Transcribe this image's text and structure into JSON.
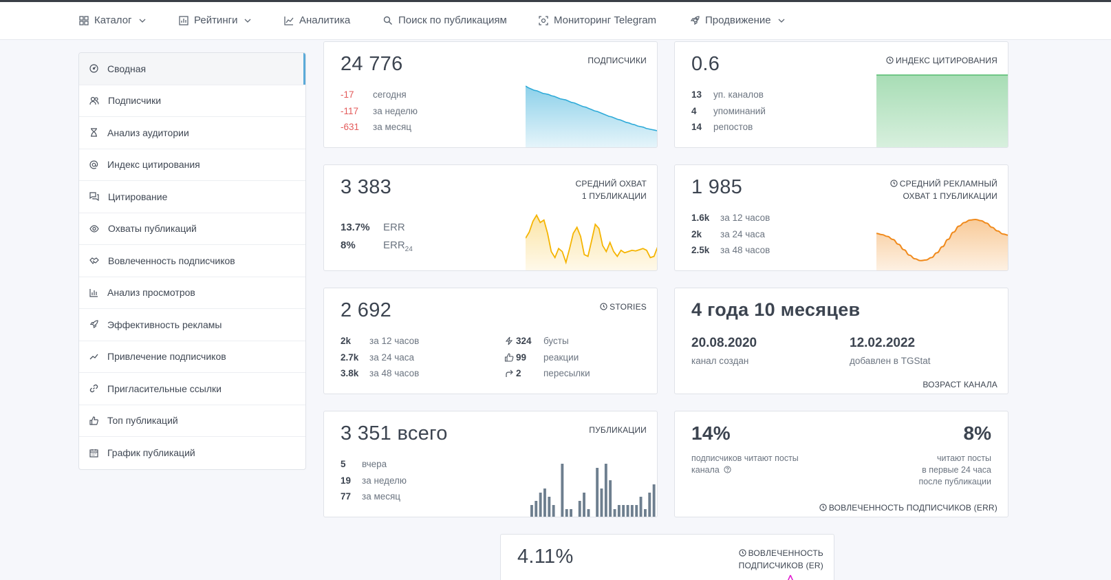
{
  "nav": {
    "items": [
      {
        "label": "Каталог"
      },
      {
        "label": "Рейтинги"
      },
      {
        "label": "Аналитика"
      },
      {
        "label": "Поиск по публикациям"
      },
      {
        "label": "Мониторинг Telegram"
      },
      {
        "label": "Продвижение"
      }
    ]
  },
  "sidebar": {
    "items": [
      {
        "label": "Сводная",
        "icon": "dashboard-icon"
      },
      {
        "label": "Подписчики",
        "icon": "users-icon"
      },
      {
        "label": "Анализ аудитории",
        "icon": "hourglass-icon"
      },
      {
        "label": "Индекс цитирования",
        "icon": "at-icon"
      },
      {
        "label": "Цитирование",
        "icon": "quote-icon"
      },
      {
        "label": "Охваты публикаций",
        "icon": "eye-icon"
      },
      {
        "label": "Вовлеченность подписчиков",
        "icon": "handshake-icon"
      },
      {
        "label": "Анализ просмотров",
        "icon": "bar-chart-icon"
      },
      {
        "label": "Эффективность рекламы",
        "icon": "rocket-icon"
      },
      {
        "label": "Привлечение подписчиков",
        "icon": "trend-icon"
      },
      {
        "label": "Пригласительные ссылки",
        "icon": "link-icon"
      },
      {
        "label": "Топ публикаций",
        "icon": "thumbs-up-icon"
      },
      {
        "label": "График публикаций",
        "icon": "calendar-icon"
      }
    ]
  },
  "subscribers": {
    "value": "24 776",
    "label": "ПОДПИСЧИКИ",
    "rows": [
      {
        "value": "-17",
        "desc": "сегодня"
      },
      {
        "value": "-117",
        "desc": "за неделю"
      },
      {
        "value": "-631",
        "desc": "за месяц"
      }
    ],
    "color": "#2eaad8"
  },
  "citation": {
    "value": "0.6",
    "label": "ИНДЕКС ЦИТИРОВАНИЯ",
    "rows": [
      {
        "value": "13",
        "desc": "уп. каналов"
      },
      {
        "value": "4",
        "desc": "упоминаний"
      },
      {
        "value": "14",
        "desc": "репостов"
      }
    ],
    "color": "#3cb35a"
  },
  "reach": {
    "value": "3 383",
    "label_line1": "СРЕДНИЙ ОХВАТ",
    "label_line2": "1 ПУБЛИКАЦИИ",
    "rows": [
      {
        "value": "13.7%",
        "desc": "ERR"
      },
      {
        "value": "8%",
        "desc": "ERR",
        "sub": "24"
      }
    ],
    "color": "#f5b400"
  },
  "ad_reach": {
    "value": "1 985",
    "label_line1": "СРЕДНИЙ РЕКЛАМНЫЙ",
    "label_line2": "ОХВАТ 1 ПУБЛИКАЦИИ",
    "rows": [
      {
        "value": "1.6k",
        "desc": "за 12 часов"
      },
      {
        "value": "2k",
        "desc": "за 24 часа"
      },
      {
        "value": "2.5k",
        "desc": "за 48 часов"
      }
    ],
    "color": "#f08a1c"
  },
  "stories": {
    "value": "2 692",
    "label": "STORIES",
    "rows_left": [
      {
        "value": "2k",
        "desc": "за 12 часов"
      },
      {
        "value": "2.7k",
        "desc": "за 24 часа"
      },
      {
        "value": "3.8k",
        "desc": "за 48 часов"
      }
    ],
    "rows_right": [
      {
        "value": "324",
        "desc": "бусты",
        "icon": "bolt-icon"
      },
      {
        "value": "99",
        "desc": "реакции",
        "icon": "thumbs-up-icon"
      },
      {
        "value": "2",
        "desc": "пересылки",
        "icon": "share-icon"
      }
    ]
  },
  "age": {
    "value": "4 года 10 месяцев",
    "created_date": "20.08.2020",
    "created_label": "канал создан",
    "added_date": "12.02.2022",
    "added_label": "добавлен в TGStat",
    "label": "ВОЗРАСТ КАНАЛА"
  },
  "publications": {
    "value": "3 351",
    "value_suffix": "всего",
    "label": "ПУБЛИКАЦИИ",
    "rows": [
      {
        "value": "5",
        "desc": "вчера"
      },
      {
        "value": "19",
        "desc": "за неделю"
      },
      {
        "value": "77",
        "desc": "за месяц"
      }
    ],
    "color": "#6e7f8f"
  },
  "err": {
    "left_value": "14%",
    "left_line1": "подписчиков читают посты",
    "left_line2": "канала",
    "right_value": "8%",
    "right_line1": "читают посты",
    "right_line2": "в первые 24 часа",
    "right_line3": "после публикации",
    "label": "ВОВЛЕЧЕННОСТЬ ПОДПИСЧИКОВ (ERR)"
  },
  "er": {
    "value": "4.11%",
    "label_line1": "ВОВЛЕЧЕННОСТЬ",
    "label_line2": "ПОДПИСЧИКОВ (ER)"
  },
  "chart_data": [
    {
      "type": "area",
      "name": "subscribers",
      "values": [
        100,
        97,
        95,
        93,
        92,
        90,
        88,
        87,
        86,
        84,
        83,
        81,
        79,
        78,
        77,
        75,
        73,
        72,
        70,
        68,
        66,
        65,
        63,
        61,
        59,
        58,
        56,
        54,
        52,
        50,
        49,
        47,
        45,
        44,
        42,
        40,
        39,
        37,
        36,
        34,
        33,
        32,
        30,
        29,
        28,
        27,
        26
      ]
    },
    {
      "type": "area",
      "name": "citation",
      "values": [
        1,
        1,
        1,
        1,
        1,
        1,
        1,
        1,
        1,
        1
      ]
    },
    {
      "type": "area",
      "name": "reach",
      "values": [
        52,
        62,
        80,
        90,
        78,
        82,
        60,
        30,
        20,
        35,
        30,
        12,
        35,
        60,
        70,
        55,
        25,
        22,
        48,
        75,
        68,
        40,
        30,
        45,
        30,
        22,
        32,
        28,
        30,
        32,
        31,
        33,
        35,
        32,
        20,
        22,
        38
      ]
    },
    {
      "type": "area",
      "name": "ad_reach",
      "values": [
        60,
        58,
        55,
        50,
        42,
        33,
        24,
        18,
        15,
        16,
        20,
        28,
        38,
        50,
        62,
        72,
        78,
        82,
        83,
        81,
        77,
        70,
        64,
        59,
        57
      ]
    },
    {
      "type": "bar",
      "name": "publications",
      "values": [
        3,
        4,
        6,
        7,
        5,
        3,
        0,
        13,
        2,
        2,
        0,
        4,
        6,
        2,
        0,
        12,
        7,
        13,
        9,
        2,
        3,
        3,
        3,
        3,
        3,
        5,
        2,
        6,
        8
      ]
    }
  ]
}
